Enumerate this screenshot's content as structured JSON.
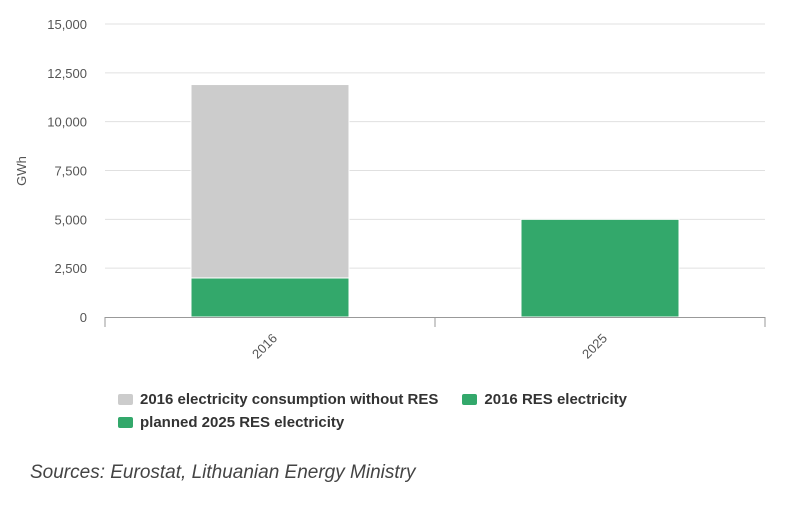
{
  "colors": {
    "grey": "#cccccc",
    "green": "#33a86b",
    "grid": "#e0e0e0",
    "axis": "#999999"
  },
  "chart_data": {
    "type": "bar",
    "stacked": true,
    "categories": [
      "2016",
      "2025"
    ],
    "ylabel": "GWh",
    "ylim": [
      0,
      15000
    ],
    "yticks": [
      "0",
      "2,500",
      "5,000",
      "7,500",
      "10,000",
      "12,500",
      "15,000"
    ],
    "ytick_values": [
      0,
      2500,
      5000,
      7500,
      10000,
      12500,
      15000
    ],
    "grid": true,
    "legend_position": "bottom-left",
    "series": [
      {
        "name": "2016 RES electricity",
        "color": "#33a86b",
        "values": [
          2000,
          0
        ]
      },
      {
        "name": "planned 2025 RES electricity",
        "color": "#33a86b",
        "values": [
          0,
          5000
        ]
      },
      {
        "name": "2016 electricity consumption without RES",
        "color": "#cccccc",
        "values": [
          9900,
          0
        ]
      }
    ]
  },
  "legend": {
    "items": [
      {
        "label": "2016 electricity consumption without RES",
        "color": "#cccccc"
      },
      {
        "label": "2016 RES electricity",
        "color": "#33a86b"
      },
      {
        "label": "planned 2025 RES electricity",
        "color": "#33a86b"
      }
    ]
  },
  "source": "Sources: Eurostat, Lithuanian Energy Ministry"
}
